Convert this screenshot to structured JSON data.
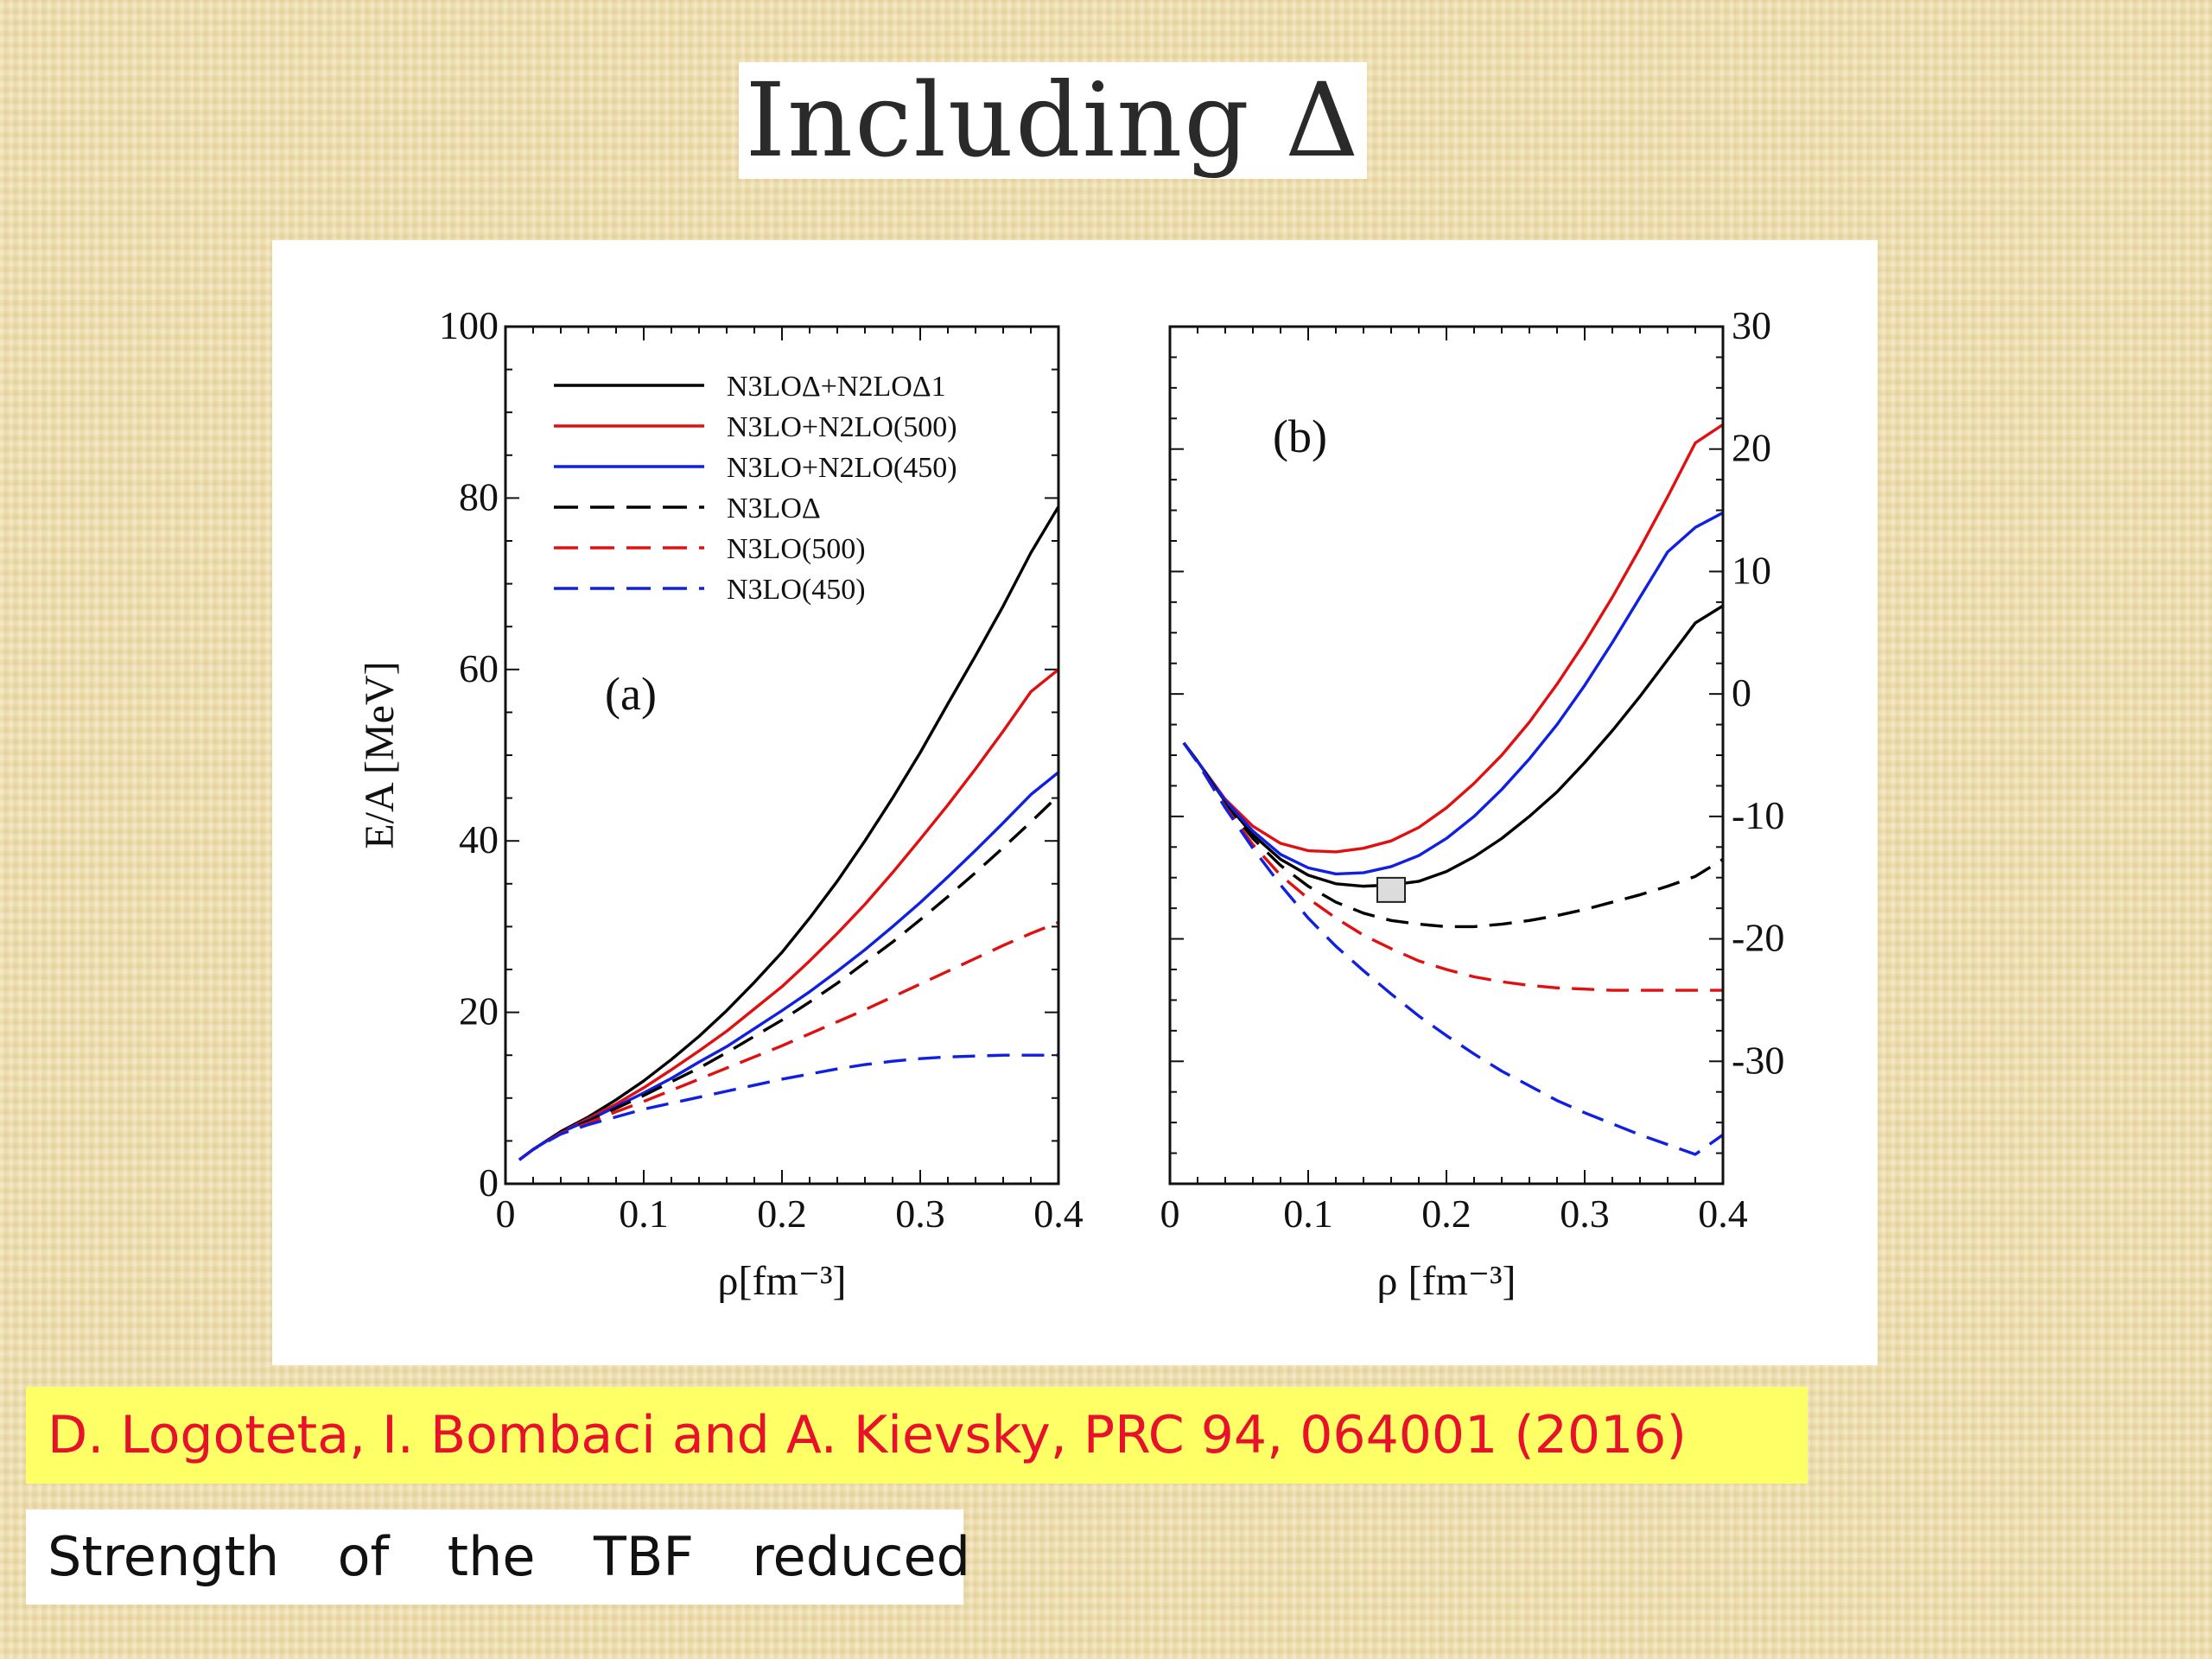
{
  "slide": {
    "title": "Including Δ",
    "citation": "D. Logoteta, I. Bombaci and A. Kievsky, PRC 94, 064001 (2016)",
    "note": "Strength  of  the  TBF  reduced"
  },
  "chart_data": [
    {
      "type": "line",
      "panel_label": "(a)",
      "xlabel": "ρ[fm⁻³]",
      "ylabel": "E/A [MeV]",
      "xlim": [
        0,
        0.4
      ],
      "ylim": [
        0,
        100
      ],
      "xticks": [
        0,
        0.1,
        0.2,
        0.3,
        0.4
      ],
      "yticks": [
        0,
        20,
        40,
        60,
        80,
        100
      ],
      "legend_position": "top-left",
      "x": [
        0.01,
        0.02,
        0.04,
        0.06,
        0.08,
        0.1,
        0.12,
        0.14,
        0.16,
        0.18,
        0.2,
        0.22,
        0.24,
        0.26,
        0.28,
        0.3,
        0.32,
        0.34,
        0.36,
        0.38,
        0.4
      ],
      "series": [
        {
          "name": "N3LOΔ+N2LOΔ1",
          "color": "#000000",
          "dash": false,
          "values": [
            2.8,
            4.0,
            6.1,
            7.8,
            9.8,
            12.0,
            14.5,
            17.2,
            20.2,
            23.5,
            27.0,
            31.0,
            35.3,
            40.0,
            45.0,
            50.3,
            56.0,
            61.6,
            67.4,
            73.6,
            79.0
          ]
        },
        {
          "name": "N3LO+N2LO(500)",
          "color": "#e01010",
          "dash": false,
          "values": [
            2.8,
            4.0,
            6.0,
            7.6,
            9.3,
            11.2,
            13.3,
            15.5,
            17.8,
            20.4,
            23.0,
            26.0,
            29.2,
            32.6,
            36.3,
            40.2,
            44.2,
            48.4,
            52.8,
            57.4,
            60.0
          ]
        },
        {
          "name": "N3LO+N2LO(450)",
          "color": "#1020e0",
          "dash": false,
          "values": [
            2.8,
            4.0,
            6.0,
            7.4,
            9.0,
            10.6,
            12.3,
            14.2,
            16.0,
            18.1,
            20.2,
            22.4,
            24.8,
            27.3,
            30.0,
            32.8,
            35.8,
            38.9,
            42.1,
            45.4,
            48.0
          ]
        },
        {
          "name": "N3LOΔ",
          "color": "#000000",
          "dash": true,
          "values": [
            2.8,
            4.0,
            6.0,
            7.3,
            8.8,
            10.3,
            11.9,
            13.5,
            15.3,
            17.2,
            19.1,
            21.2,
            23.4,
            25.8,
            28.2,
            30.8,
            33.5,
            36.3,
            39.2,
            42.2,
            45.3
          ]
        },
        {
          "name": "N3LO(500)",
          "color": "#e01010",
          "dash": true,
          "values": [
            2.8,
            4.0,
            5.9,
            7.1,
            8.4,
            9.6,
            10.9,
            12.2,
            13.5,
            14.8,
            16.1,
            17.5,
            18.9,
            20.3,
            21.8,
            23.3,
            24.8,
            26.3,
            27.8,
            29.2,
            30.5
          ]
        },
        {
          "name": "N3LO(450)",
          "color": "#1020e0",
          "dash": true,
          "values": [
            2.8,
            4.0,
            5.8,
            6.9,
            7.8,
            8.7,
            9.4,
            10.1,
            10.8,
            11.5,
            12.2,
            12.8,
            13.4,
            13.9,
            14.3,
            14.6,
            14.8,
            14.9,
            15.0,
            15.0,
            15.0
          ]
        }
      ]
    },
    {
      "type": "line",
      "panel_label": "(b)",
      "xlabel": "ρ [fm⁻³]",
      "ylabel": "",
      "xlim": [
        0,
        0.4
      ],
      "ylim": [
        -40,
        30
      ],
      "xticks": [
        0,
        0.1,
        0.2,
        0.3,
        0.4
      ],
      "yticks": [
        -30,
        -20,
        -10,
        0,
        10,
        20,
        30
      ],
      "yaxis_side": "right",
      "empirical_saturation_point": {
        "x": 0.16,
        "y": -16
      },
      "x": [
        0.01,
        0.02,
        0.04,
        0.06,
        0.08,
        0.1,
        0.12,
        0.14,
        0.16,
        0.18,
        0.2,
        0.22,
        0.24,
        0.26,
        0.28,
        0.3,
        0.32,
        0.34,
        0.36,
        0.38,
        0.4
      ],
      "series": [
        {
          "name": "N3LOΔ+N2LOΔ1",
          "color": "#000000",
          "dash": false,
          "values": [
            -4.0,
            -5.5,
            -8.8,
            -11.5,
            -13.5,
            -14.8,
            -15.5,
            -15.7,
            -15.6,
            -15.3,
            -14.5,
            -13.3,
            -11.8,
            -10.0,
            -8.0,
            -5.6,
            -3.0,
            -0.2,
            2.8,
            5.8,
            7.2
          ]
        },
        {
          "name": "N3LO+N2LO(500)",
          "color": "#e01010",
          "dash": false,
          "values": [
            -4.0,
            -5.5,
            -8.6,
            -10.8,
            -12.2,
            -12.8,
            -12.9,
            -12.6,
            -12.0,
            -10.9,
            -9.3,
            -7.3,
            -5.0,
            -2.3,
            0.8,
            4.2,
            7.9,
            11.9,
            16.1,
            20.5,
            22.0
          ]
        },
        {
          "name": "N3LO+N2LO(450)",
          "color": "#1020e0",
          "dash": false,
          "values": [
            -4.0,
            -5.5,
            -8.7,
            -11.2,
            -13.1,
            -14.2,
            -14.7,
            -14.6,
            -14.1,
            -13.2,
            -11.8,
            -10.0,
            -7.8,
            -5.3,
            -2.5,
            0.7,
            4.2,
            7.9,
            11.6,
            13.6,
            14.8
          ]
        },
        {
          "name": "N3LOΔ",
          "color": "#000000",
          "dash": true,
          "values": [
            -4.0,
            -5.5,
            -9.0,
            -11.8,
            -14.0,
            -15.7,
            -17.0,
            -17.9,
            -18.5,
            -18.8,
            -19.0,
            -19.0,
            -18.8,
            -18.5,
            -18.1,
            -17.6,
            -17.0,
            -16.4,
            -15.7,
            -14.9,
            -13.5
          ]
        },
        {
          "name": "N3LO(500)",
          "color": "#e01010",
          "dash": true,
          "values": [
            -4.0,
            -5.6,
            -9.2,
            -12.3,
            -14.8,
            -16.7,
            -18.3,
            -19.7,
            -20.8,
            -21.8,
            -22.5,
            -23.1,
            -23.5,
            -23.8,
            -24.0,
            -24.1,
            -24.2,
            -24.2,
            -24.2,
            -24.2,
            -24.2
          ]
        },
        {
          "name": "N3LO(450)",
          "color": "#1020e0",
          "dash": true,
          "values": [
            -4.0,
            -5.6,
            -9.3,
            -12.6,
            -15.6,
            -18.3,
            -20.6,
            -22.6,
            -24.5,
            -26.3,
            -27.9,
            -29.4,
            -30.8,
            -32.0,
            -33.2,
            -34.2,
            -35.1,
            -36.0,
            -36.8,
            -37.6,
            -36.0
          ]
        }
      ]
    }
  ]
}
